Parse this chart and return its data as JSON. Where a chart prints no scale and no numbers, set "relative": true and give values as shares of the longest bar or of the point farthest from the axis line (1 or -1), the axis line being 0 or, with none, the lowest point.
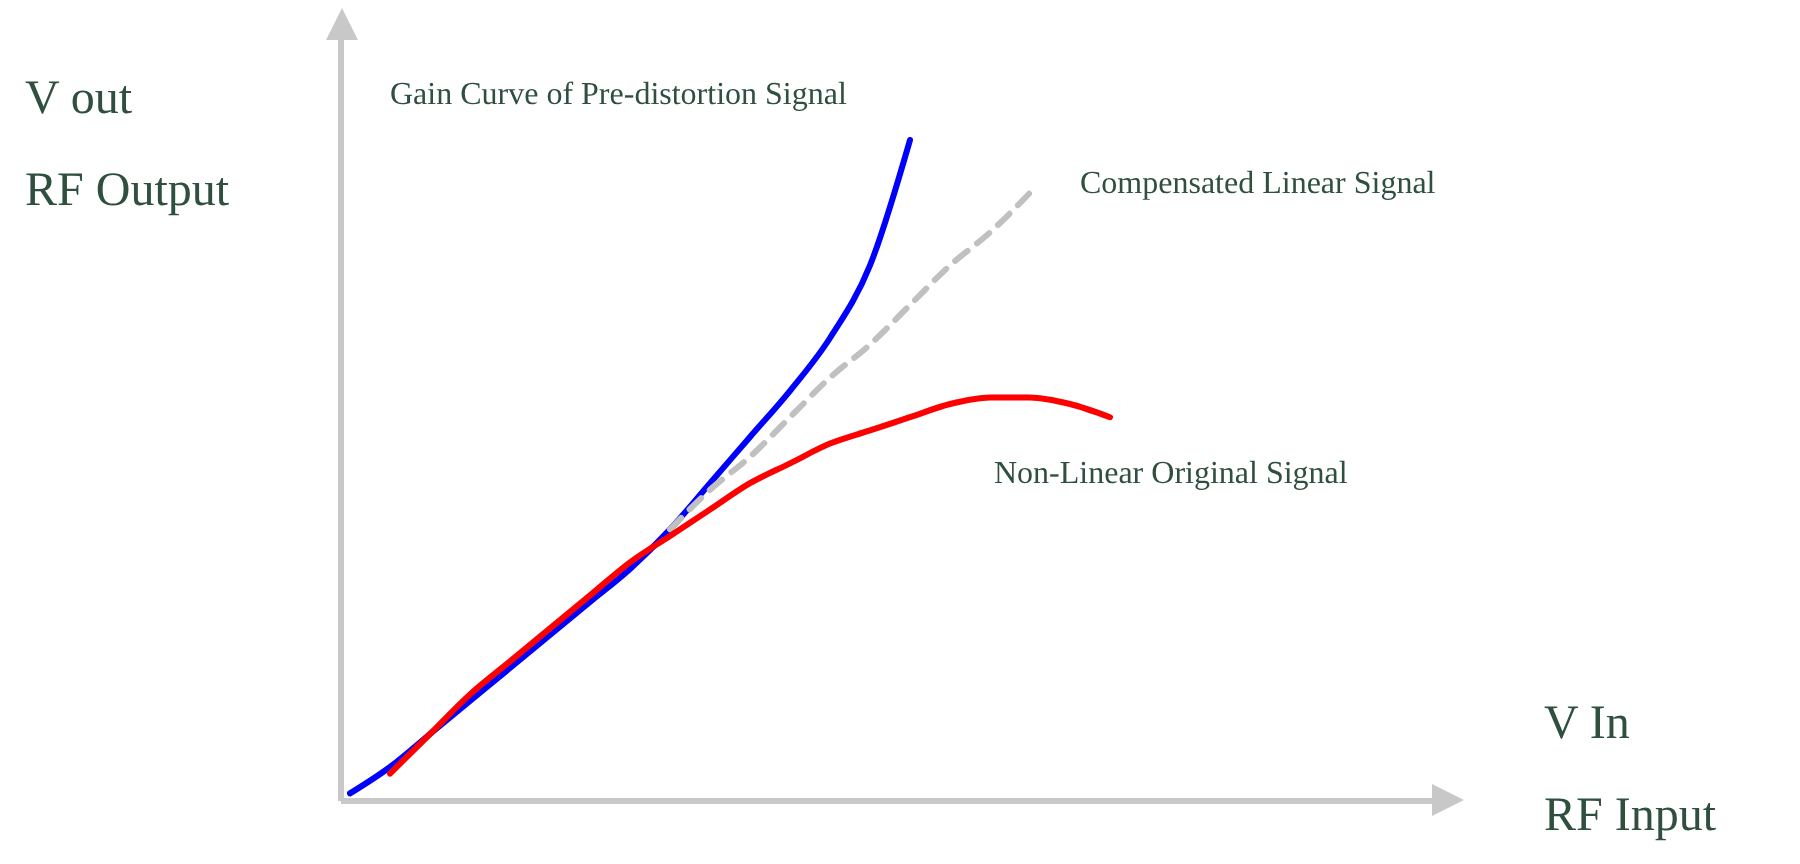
{
  "chart_data": {
    "type": "line",
    "relative": true,
    "annotations": [
      "V In\nRF Input"
    ],
    "ylabel": "V out\nRF Output",
    "categories": [
      null,
      null,
      null,
      null,
      null,
      null,
      null,
      null,
      null,
      null,
      null,
      null,
      null,
      null,
      null,
      null,
      null,
      null,
      null,
      null
    ],
    "series": [
      {
        "name": "Gain Curve of Pre-distortion Signal",
        "color": "#0000ff",
        "values": [
          0.01,
          0.05,
          0.1,
          0.15,
          0.2,
          0.25,
          0.3,
          0.35,
          0.41,
          0.48,
          0.55,
          0.62,
          0.7,
          0.81,
          1.0,
          null,
          null,
          null,
          null,
          null
        ]
      },
      {
        "name": "Compensated Linear Signal",
        "color": "#c0c0c0",
        "line_style": "dashed",
        "values": [
          null,
          null,
          null,
          null,
          null,
          null,
          null,
          null,
          0.41,
          0.47,
          0.52,
          0.58,
          0.64,
          0.69,
          0.75,
          0.81,
          0.86,
          0.92,
          null,
          null
        ]
      },
      {
        "name": "Non-Linear Original Signal",
        "color": "#ff0000",
        "values": [
          null,
          0.04,
          0.1,
          0.16,
          0.21,
          0.26,
          0.31,
          0.36,
          0.4,
          0.44,
          0.48,
          0.51,
          0.54,
          0.56,
          0.58,
          0.6,
          0.61,
          0.61,
          0.6,
          0.58
        ]
      }
    ],
    "grid": false,
    "marker": "none"
  }
}
